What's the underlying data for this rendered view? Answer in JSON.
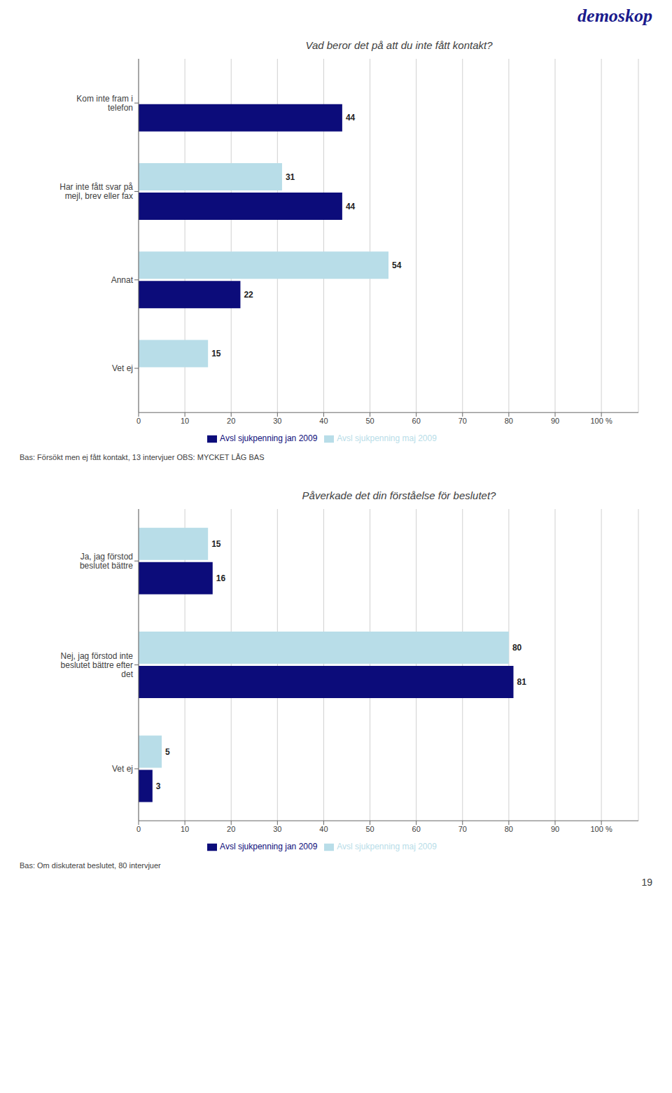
{
  "chart_data": [
    {
      "type": "bar",
      "orientation": "horizontal",
      "title": "Vad beror det på att du inte fått kontakt?",
      "categories": [
        "Kom inte fram i\ntelefon",
        "Har inte fått svar på\nmejl, brev eller fax",
        "Annat",
        "Vet ej"
      ],
      "series": [
        {
          "name": "Avsl sjukpenning maj 2009",
          "color": "#b8dde8",
          "values": [
            0,
            31,
            54,
            15
          ]
        },
        {
          "name": "Avsl sjukpenning jan 2009",
          "color": "#0c0c7a",
          "values": [
            44,
            44,
            22,
            0
          ]
        }
      ],
      "xlim": [
        0,
        108
      ],
      "xticks": [
        0,
        10,
        20,
        30,
        40,
        50,
        60,
        70,
        80,
        90,
        {
          "value": 100,
          "label": "100 %"
        }
      ],
      "grid": true,
      "legend": "bottom",
      "data_labels": true,
      "annotations": [
        "demoskop",
        "Bas: Försökt men ej fått kontakt, 13 intervjuer OBS: MYCKET LÅG BAS"
      ]
    },
    {
      "type": "bar",
      "orientation": "horizontal",
      "title": "Påverkade det din förståelse för beslutet?",
      "categories": [
        "Ja, jag förstod\nbeslutet bättre",
        "Nej, jag förstod inte\nbeslutet bättre efter\ndet",
        "Vet ej"
      ],
      "series": [
        {
          "name": "Avsl sjukpenning maj 2009",
          "color": "#b8dde8",
          "values": [
            15,
            80,
            5
          ]
        },
        {
          "name": "Avsl sjukpenning jan 2009",
          "color": "#0c0c7a",
          "values": [
            16,
            81,
            3
          ]
        }
      ],
      "xlim": [
        0,
        108
      ],
      "xticks": [
        0,
        10,
        20,
        30,
        40,
        50,
        60,
        70,
        80,
        90,
        {
          "value": 100,
          "label": "100 %"
        }
      ],
      "grid": true,
      "legend": "bottom",
      "data_labels": true,
      "annotations": [
        "Bas: Om diskuterat beslutet, 80 intervjuer",
        "19"
      ]
    }
  ]
}
